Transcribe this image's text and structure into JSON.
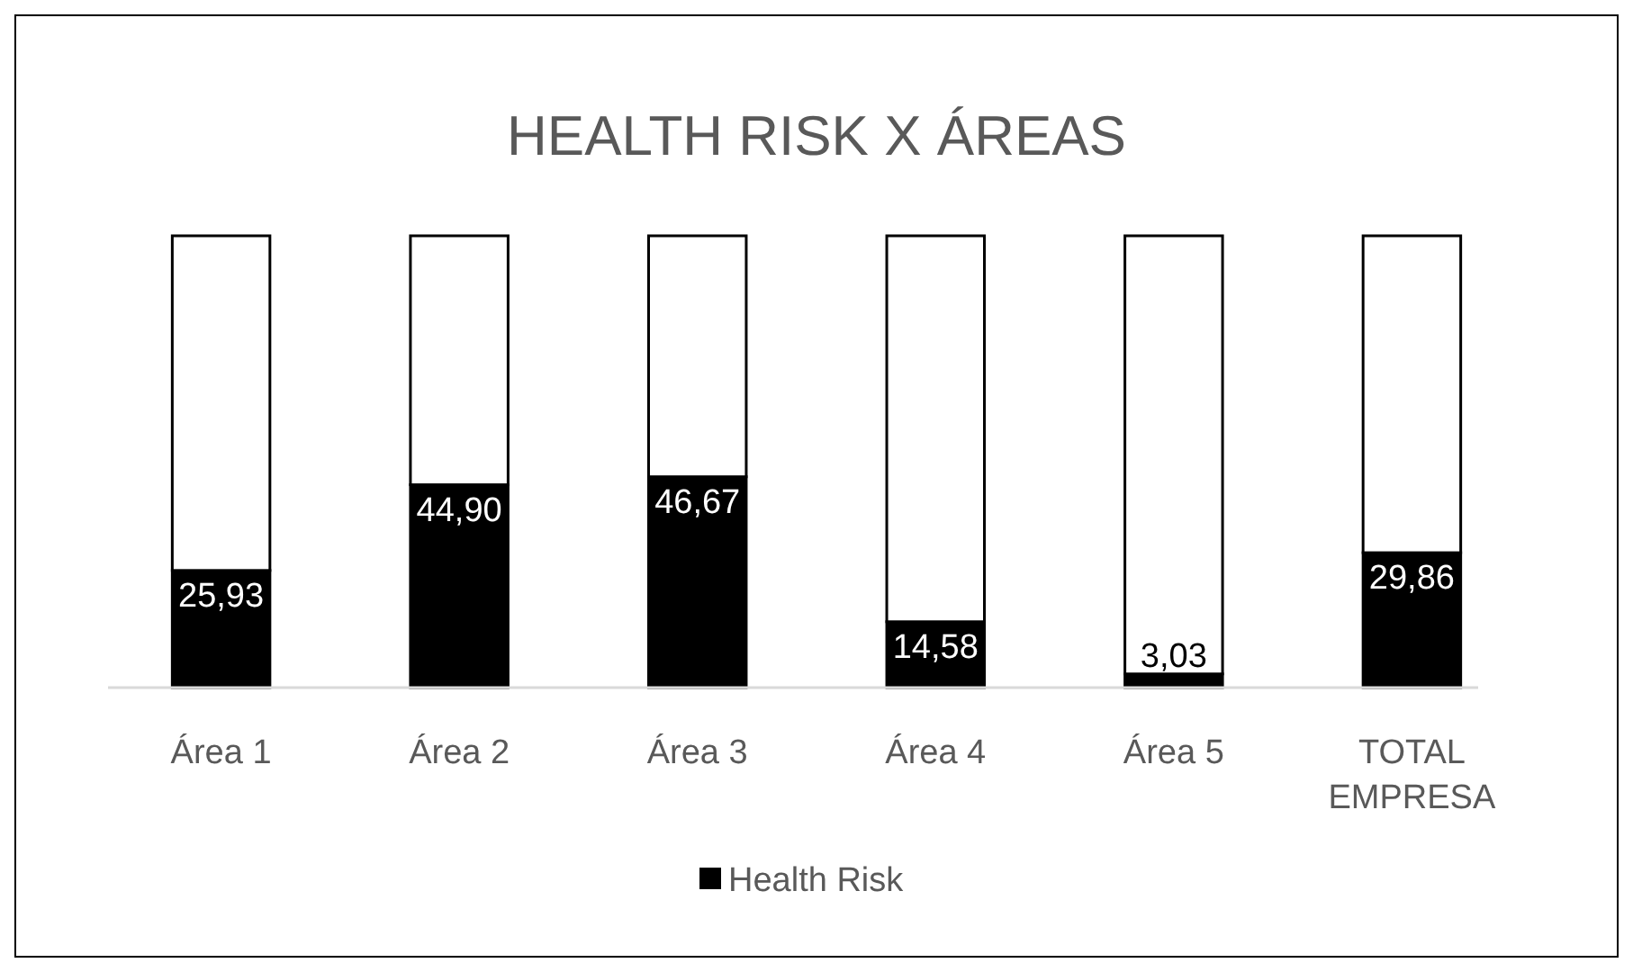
{
  "chart_data": {
    "type": "bar",
    "title": "HEALTH RISK X ÁREAS",
    "stacked": true,
    "categories": [
      "Área 1",
      "Área 2",
      "Área 3",
      "Área 4",
      "Área 5",
      "TOTAL EMPRESA"
    ],
    "series": [
      {
        "name": "Health Risk",
        "color": "#000000",
        "values": [
          25.93,
          44.9,
          46.67,
          14.58,
          3.03,
          29.86
        ],
        "value_labels": [
          "25,93",
          "44,90",
          "46,67",
          "14,58",
          "3,03",
          "29,86"
        ]
      },
      {
        "color": "#ffffff",
        "values": [
          74.07,
          55.1,
          53.33,
          85.42,
          96.97,
          70.14
        ]
      }
    ],
    "legend": "bottom"
  }
}
